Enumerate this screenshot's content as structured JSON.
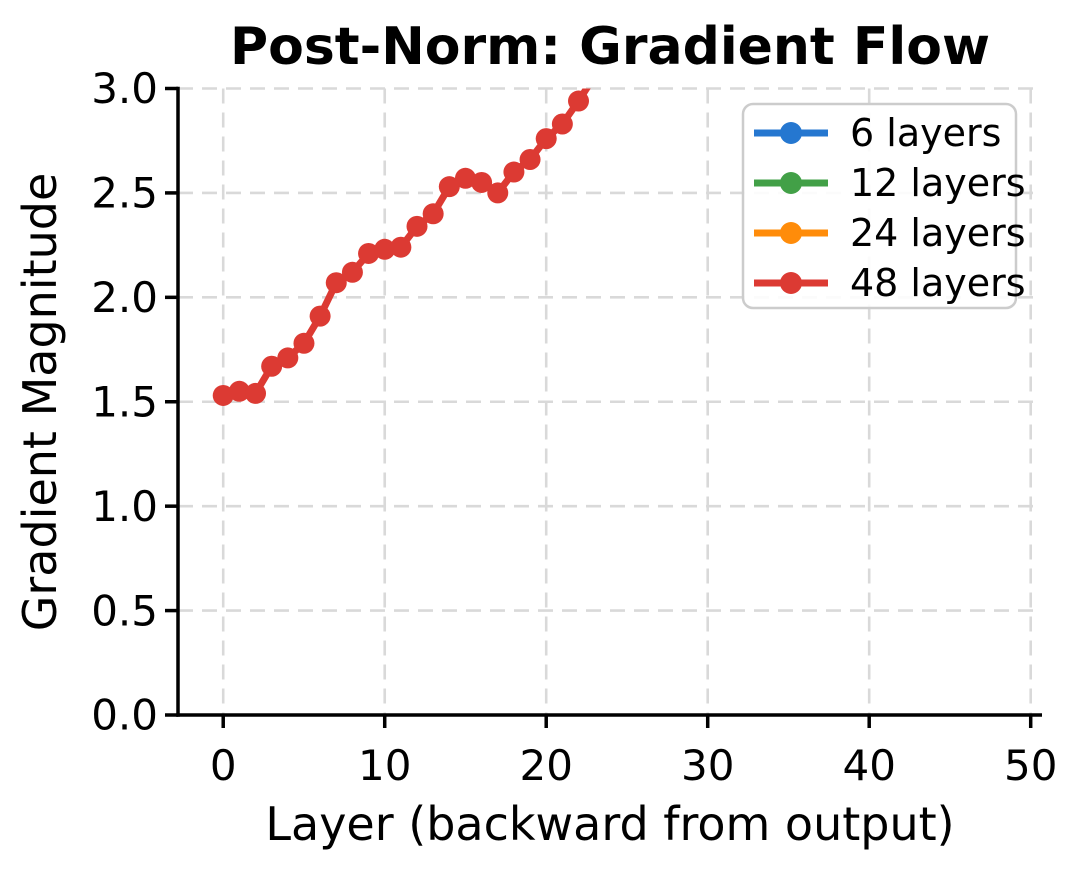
{
  "figure": {
    "background": "#ffffff",
    "text_color": "#000000"
  },
  "chart_data": {
    "type": "line",
    "title": "Post-Norm: Gradient Flow",
    "xlabel": "Layer (backward from output)",
    "ylabel": "Gradient Magnitude",
    "xlim": [
      -2.8,
      50.7
    ],
    "ylim": [
      0.0,
      3.0
    ],
    "x_ticks": [
      0,
      10,
      20,
      30,
      40,
      50
    ],
    "x_tick_labels": [
      "0",
      "10",
      "20",
      "30",
      "40",
      "50"
    ],
    "y_ticks": [
      0.0,
      0.5,
      1.0,
      1.5,
      2.0,
      2.5,
      3.0
    ],
    "y_tick_labels": [
      "0.0",
      "0.5",
      "1.0",
      "1.5",
      "2.0",
      "2.5",
      "3.0"
    ],
    "grid": true,
    "grid_style": "dashed",
    "legend_position": "upper right",
    "series": [
      {
        "label": "6 layers",
        "color": "#2577d0",
        "marker": "circle",
        "x": [],
        "values": [],
        "visibility": "in legend only; curve not visible (occluded by 48 layers curve)"
      },
      {
        "label": "12 layers",
        "color": "#42a047",
        "marker": "circle",
        "x": [],
        "values": [],
        "visibility": "in legend only; curve not visible (occluded by 48 layers curve)"
      },
      {
        "label": "24 layers",
        "color": "#ff8c0a",
        "marker": "circle",
        "x": [],
        "values": [],
        "visibility": "in legend only; curve not visible (occluded by 48 layers curve)"
      },
      {
        "label": "48 layers",
        "color": "#dc3a33",
        "marker": "circle",
        "x": [
          0,
          1,
          2,
          3,
          4,
          5,
          6,
          7,
          8,
          9,
          10,
          11,
          12,
          13,
          14,
          15,
          16,
          17,
          18,
          19,
          20,
          21,
          22,
          23
        ],
        "values": [
          1.53,
          1.55,
          1.54,
          1.67,
          1.71,
          1.78,
          1.91,
          2.07,
          2.12,
          2.21,
          2.23,
          2.24,
          2.34,
          2.4,
          2.53,
          2.57,
          2.55,
          2.5,
          2.6,
          2.66,
          2.76,
          2.83,
          2.94,
          3.06
        ],
        "visibility": "visible; rises from ~1.53 at layer 0 and exits the top of the axes (y=3.0) between layer 22 and 23"
      }
    ],
    "colors": {
      "axis": "#000000",
      "grid": "#d9d9d9",
      "legend_border": "#cccccc"
    }
  }
}
